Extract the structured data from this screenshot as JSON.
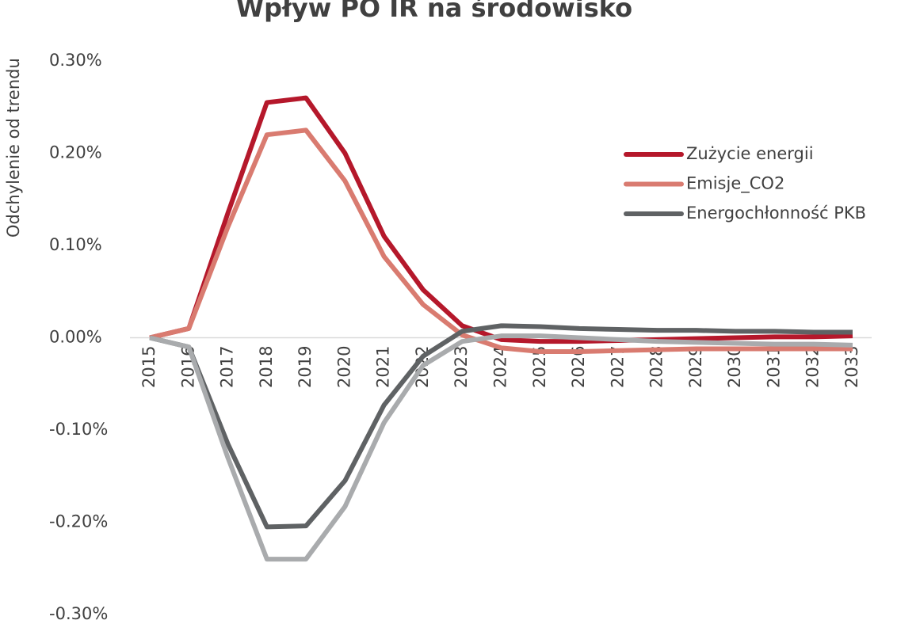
{
  "chart_data": {
    "type": "line",
    "title": "Wpływ PO IR  na środowisko",
    "y_label": "Odchylenie od trendu",
    "categories": [
      "2015",
      "2016",
      "2017",
      "2018",
      "2019",
      "2020",
      "2021",
      "2022",
      "2023",
      "2024",
      "2025",
      "2026",
      "2027",
      "2028",
      "2029",
      "2030",
      "2031",
      "2032",
      "2033"
    ],
    "series": [
      {
        "name": "Zużycie energii",
        "color": "#b5182b",
        "values": [
          0,
          0.01,
          0.135,
          0.255,
          0.26,
          0.2,
          0.11,
          0.052,
          0.013,
          -0.002,
          -0.004,
          -0.004,
          -0.003,
          -0.002,
          -0.001,
          0,
          0.001,
          0.001,
          0.002
        ]
      },
      {
        "name": "Emisje_CO2",
        "color": "#d97b70",
        "values": [
          0,
          0.01,
          0.12,
          0.22,
          0.225,
          0.17,
          0.088,
          0.036,
          0.003,
          -0.011,
          -0.015,
          -0.015,
          -0.014,
          -0.013,
          -0.012,
          -0.012,
          -0.012,
          -0.012,
          -0.012
        ]
      },
      {
        "name": "Energochłonność PKB",
        "color": "#5f6264",
        "values": [
          0,
          -0.01,
          -0.115,
          -0.205,
          -0.204,
          -0.155,
          -0.073,
          -0.02,
          0.007,
          0.013,
          0.012,
          0.01,
          0.009,
          0.008,
          0.008,
          0.007,
          0.007,
          0.006,
          0.006
        ]
      },
      {
        "color": "#a9abad",
        "values": [
          0,
          -0.01,
          -0.13,
          -0.24,
          -0.24,
          -0.183,
          -0.092,
          -0.03,
          -0.004,
          0.002,
          0.002,
          0,
          -0.002,
          -0.004,
          -0.005,
          -0.006,
          -0.007,
          -0.007,
          -0.008
        ]
      }
    ],
    "ylim": [
      -0.3,
      0.3
    ],
    "yticks": [
      {
        "value": -0.3,
        "label": "-0.30%"
      },
      {
        "value": -0.2,
        "label": "-0.20%"
      },
      {
        "value": -0.1,
        "label": "-0.10%"
      },
      {
        "value": 0,
        "label": "0.00%"
      },
      {
        "value": 0.1,
        "label": "0.10%"
      },
      {
        "value": 0.2,
        "label": "0.20%"
      },
      {
        "value": 0.3,
        "label": "0.30%"
      }
    ],
    "grid": false,
    "legend": "right"
  }
}
